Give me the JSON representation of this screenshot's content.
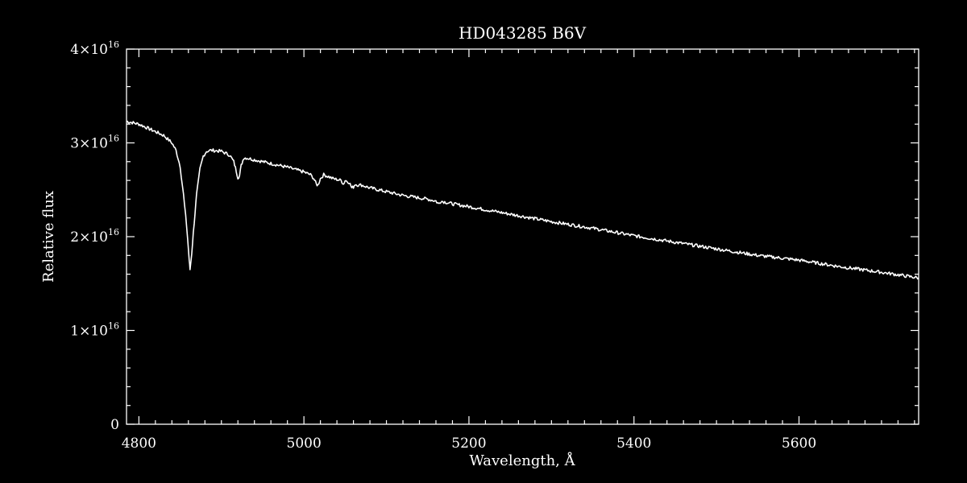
{
  "colors": {
    "background": "#000000",
    "foreground": "#ffffff"
  },
  "chart_data": {
    "type": "line",
    "title": "HD043285   B6V",
    "xlabel": "Wavelength, Å",
    "ylabel": "Relative flux",
    "xlim": [
      4785,
      5745
    ],
    "ylim": [
      0,
      4e+16
    ],
    "grid": false,
    "x_ticks": [
      {
        "value": 4800,
        "label": "4800"
      },
      {
        "value": 5000,
        "label": "5000"
      },
      {
        "value": 5200,
        "label": "5200"
      },
      {
        "value": 5400,
        "label": "5400"
      },
      {
        "value": 5600,
        "label": "5600"
      }
    ],
    "y_ticks": [
      {
        "value": 0,
        "mant": "0",
        "exp": ""
      },
      {
        "value": 1e+16,
        "mant": "1×10",
        "exp": "16"
      },
      {
        "value": 2e+16,
        "mant": "2×10",
        "exp": "16"
      },
      {
        "value": 3e+16,
        "mant": "3×10",
        "exp": "16"
      },
      {
        "value": 4e+16,
        "mant": "4×10",
        "exp": "16"
      }
    ],
    "series": [
      {
        "x": [
          4785,
          4800,
          4815,
          4830,
          4840,
          4845,
          4850,
          4854,
          4858,
          4861,
          4862,
          4864,
          4867,
          4870,
          4874,
          4878,
          4882,
          4886,
          4890,
          4900,
          4910,
          4915,
          4918,
          4920,
          4922,
          4924,
          4927,
          4930,
          4940,
          4960,
          4980,
          5000,
          5008,
          5012,
          5015,
          5017,
          5020,
          5024,
          5030,
          5035,
          5040,
          5045,
          5048,
          5050,
          5055,
          5058,
          5060,
          5062,
          5066,
          5070,
          5080,
          5100,
          5120,
          5150,
          5160,
          5163,
          5166,
          5180,
          5200,
          5250,
          5300,
          5350,
          5400,
          5450,
          5500,
          5550,
          5600,
          5650,
          5700,
          5745
        ],
        "y": [
          3.23e+16,
          3.2e+16,
          3.14e+16,
          3.08e+16,
          3e+16,
          2.92e+16,
          2.75e+16,
          2.45e+16,
          2.1e+16,
          1.75e+16,
          1.65e+16,
          1.82e+16,
          2.15e+16,
          2.45e+16,
          2.72e+16,
          2.86e+16,
          2.91e+16,
          2.92e+16,
          2.92e+16,
          2.91e+16,
          2.87e+16,
          2.8e+16,
          2.7e+16,
          2.63e+16,
          2.65e+16,
          2.76e+16,
          2.84e+16,
          2.84e+16,
          2.82e+16,
          2.78e+16,
          2.74e+16,
          2.69e+16,
          2.66e+16,
          2.62e+16,
          2.56e+16,
          2.55e+16,
          2.62e+16,
          2.66e+16,
          2.64e+16,
          2.62e+16,
          2.61e+16,
          2.6e+16,
          2.56e+16,
          2.6e+16,
          2.58e+16,
          2.52e+16,
          2.53e+16,
          2.56e+16,
          2.55e+16,
          2.55e+16,
          2.52e+16,
          2.48e+16,
          2.44e+16,
          2.4e+16,
          2.38e+16,
          2.35e+16,
          2.38e+16,
          2.35e+16,
          2.32e+16,
          2.24e+16,
          2.16e+16,
          2.09e+16,
          2.01e+16,
          1.94e+16,
          1.87e+16,
          1.8e+16,
          1.75e+16,
          1.68e+16,
          1.62e+16,
          1.56e+16
        ]
      }
    ]
  }
}
